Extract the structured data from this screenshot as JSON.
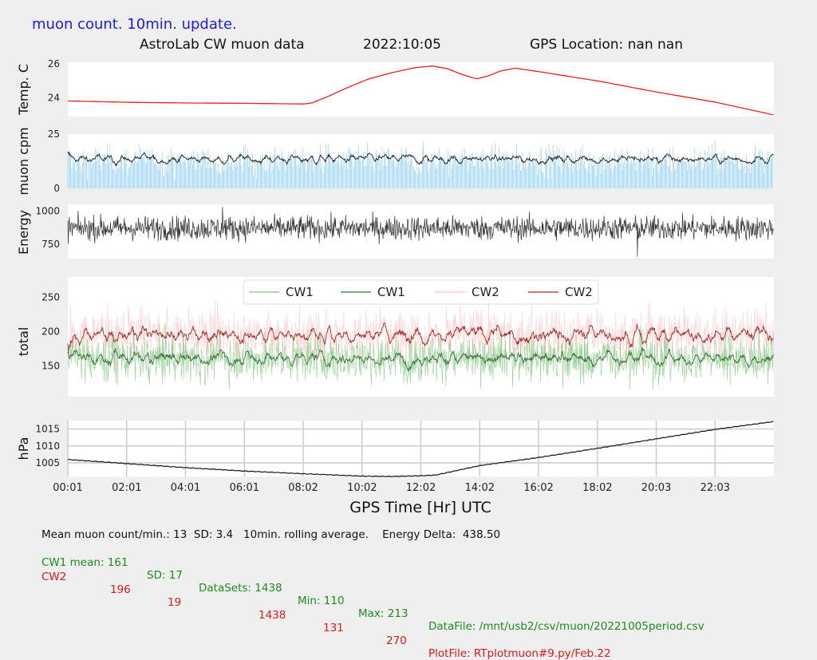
{
  "header": {
    "subtitle": "muon count.  10min. update.",
    "title": "AstroLab CW muon data",
    "date": "2022:10:05",
    "gps_location": "GPS Location: nan   nan"
  },
  "colors": {
    "subtitle": "#1a1aee",
    "temp_line": "#e82020",
    "muon_bars": "#5bb8e8",
    "muon_avg": "#222222",
    "energy_line": "#333333",
    "cw1_raw": "#7fc87f",
    "cw1_avg": "#3f6f3f",
    "cw2_raw": "#ffc8c8",
    "cw2_avg": "#a52a2a",
    "pressure_line": "#111111",
    "footer_green": "#1c8c1c",
    "footer_red": "#e01818"
  },
  "chart_data": [
    {
      "type": "line",
      "name": "temperature",
      "ylabel": "Temp. C",
      "yticks": [
        24,
        26
      ],
      "ylim": [
        22.9,
        26.1
      ],
      "x_hours": [
        0,
        2,
        4,
        6,
        8.0,
        8.3,
        8.8,
        9.5,
        10.2,
        11,
        11.8,
        12.4,
        12.9,
        13.4,
        13.9,
        14.3,
        14.7,
        15.2,
        16,
        18,
        20,
        22,
        23.98
      ],
      "values": [
        23.82,
        23.74,
        23.7,
        23.68,
        23.64,
        23.7,
        24.05,
        24.6,
        25.1,
        25.48,
        25.78,
        25.88,
        25.72,
        25.38,
        25.12,
        25.3,
        25.58,
        25.75,
        25.55,
        25.0,
        24.35,
        23.75,
        23.0
      ],
      "grid": false
    },
    {
      "type": "bar",
      "name": "muon_cpm",
      "ylabel": "muon cpm",
      "yticks": [
        0,
        25
      ],
      "ylim": [
        0,
        25
      ],
      "mean": 13,
      "sd": 3.4,
      "rolling_avg_minutes": 10,
      "grid": false
    },
    {
      "type": "line",
      "name": "energy",
      "ylabel": "Energy",
      "yticks": [
        750,
        1000
      ],
      "ylim": [
        640,
        1050
      ],
      "mean": 870,
      "max": 1030,
      "min": 655,
      "grid": false
    },
    {
      "type": "line",
      "name": "total",
      "ylabel": "total",
      "yticks": [
        150,
        200,
        250
      ],
      "ylim": [
        105,
        280
      ],
      "legend": [
        "CW1",
        "CW1",
        "CW2",
        "CW2"
      ],
      "legend_placement": "top-center",
      "series": [
        {
          "name": "CW1",
          "mean": 161,
          "sd": 17,
          "min": 110,
          "max": 213
        },
        {
          "name": "CW2",
          "mean": 196,
          "sd": 19,
          "min": 131,
          "max": 270
        }
      ],
      "grid": false
    },
    {
      "type": "line",
      "name": "pressure",
      "ylabel": "hPa",
      "yticks": [
        1005,
        1010,
        1015
      ],
      "ylim": [
        1001,
        1017.5
      ],
      "x_hours": [
        0,
        2,
        4,
        6,
        8,
        10,
        11,
        12,
        12.5,
        14,
        16,
        18,
        20,
        22,
        23.98
      ],
      "values": [
        1006,
        1004.8,
        1003.6,
        1002.6,
        1001.8,
        1001.1,
        1001.0,
        1001.2,
        1001.4,
        1004.2,
        1006.6,
        1009.3,
        1012.1,
        1014.9,
        1017.2
      ],
      "grid": true
    }
  ],
  "x_axis": {
    "label": "GPS Time  [Hr] UTC",
    "ticks": [
      "00:01",
      "02:01",
      "04:01",
      "06:01",
      "08:02",
      "10:02",
      "12:02",
      "14:02",
      "16:02",
      "18:02",
      "20:03",
      "22:03"
    ]
  },
  "footer": {
    "line1": "Mean muon count/min.: 13  SD: 3.4   10min. rolling average.    Energy Delta:  438.50",
    "cw1": {
      "label": "CW1 mean: 161",
      "sd": "SD: 17",
      "datasets": "DataSets: 1438",
      "min": "Min: 110",
      "max": "Max: 213",
      "file": "DataFile: /mnt/usb2/csv/muon/20221005period.csv"
    },
    "cw2": {
      "label": "CW2",
      "mean": "196",
      "sd": "19",
      "datasets": "1438",
      "min": "131",
      "max": "270",
      "file": "PlotFile: RTplotmuon#9.py/Feb.22"
    }
  }
}
